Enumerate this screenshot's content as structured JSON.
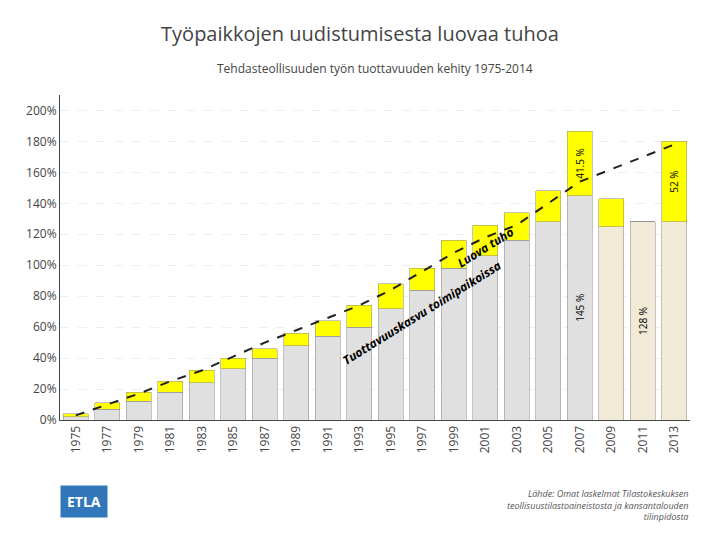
{
  "chart_data": {
    "type": "bar",
    "title": "Työpaikkojen uudistumisesta luovaa tuhoa",
    "subtitle": "Tehdasteollisuuden työn tuottavuuden kehity 1975-2014",
    "categories": [
      "1975",
      "1977",
      "1979",
      "1981",
      "1983",
      "1985",
      "1987",
      "1989",
      "1991",
      "1993",
      "1995",
      "1997",
      "1999",
      "2001",
      "2003",
      "2005",
      "2007",
      "2009",
      "2011",
      "2013"
    ],
    "series": [
      {
        "type": "bar",
        "colors": [
          "#e0e0e0",
          "#e0e0e0",
          "#e0e0e0",
          "#e0e0e0",
          "#e0e0e0",
          "#e0e0e0",
          "#e0e0e0",
          "#e0e0e0",
          "#e0e0e0",
          "#e0e0e0",
          "#e0e0e0",
          "#e0e0e0",
          "#e0e0e0",
          "#e0e0e0",
          "#e0e0e0",
          "#e0e0e0",
          "#e0e0e0",
          "#f0ead6",
          "#f0ead6",
          "#f0ead6"
        ],
        "values": [
          2,
          7,
          12,
          18,
          24,
          33,
          40,
          48,
          54,
          60,
          72,
          84,
          98,
          106,
          116,
          128,
          145,
          125,
          128,
          128
        ],
        "value_labels": [
          null,
          null,
          null,
          null,
          null,
          null,
          null,
          null,
          null,
          null,
          null,
          null,
          null,
          null,
          null,
          null,
          "145 %",
          null,
          "128 %",
          null
        ]
      },
      {
        "type": "bar",
        "color": "#ffff00",
        "values": [
          2,
          4,
          6,
          7,
          8,
          7,
          6,
          8,
          10,
          14,
          16,
          14,
          18,
          20,
          18,
          20,
          41.5,
          18,
          0,
          52
        ],
        "value_labels": [
          null,
          null,
          null,
          null,
          null,
          null,
          null,
          null,
          null,
          null,
          null,
          null,
          null,
          null,
          null,
          null,
          "41.5 %",
          null,
          null,
          "52 %"
        ]
      },
      {
        "type": "line",
        "color": "#222222",
        "line_style": "dashed",
        "values": [
          3,
          10,
          17,
          25,
          32,
          41,
          50,
          58,
          66,
          74,
          84,
          96,
          108,
          118,
          126,
          140,
          154,
          162,
          170,
          178
        ]
      }
    ],
    "stacked": true,
    "data_labels": true,
    "ylim": [
      0,
      210
    ],
    "yticks": [
      {
        "value": 0,
        "label": "0%"
      },
      {
        "value": 20,
        "label": "20%"
      },
      {
        "value": 40,
        "label": "40%"
      },
      {
        "value": 60,
        "label": "60%"
      },
      {
        "value": 80,
        "label": "80%"
      },
      {
        "value": 100,
        "label": "100%"
      },
      {
        "value": 120,
        "label": "120%"
      },
      {
        "value": 140,
        "label": "140%"
      },
      {
        "value": 160,
        "label": "160%"
      },
      {
        "value": 180,
        "label": "180%"
      },
      {
        "value": 200,
        "label": "200%"
      }
    ],
    "grid": true,
    "annotations": [
      {
        "text": "Tuottavuuskasvu toimipaikoissa"
      },
      {
        "text": "Luova tuho"
      },
      {
        "text": "Lähde: Omat laskelmat Tilastokeskuksen\nteollisuustilastoaineistosta ja kansantalouden\ntilinpidosta"
      },
      {
        "text": "ETLA"
      }
    ]
  }
}
